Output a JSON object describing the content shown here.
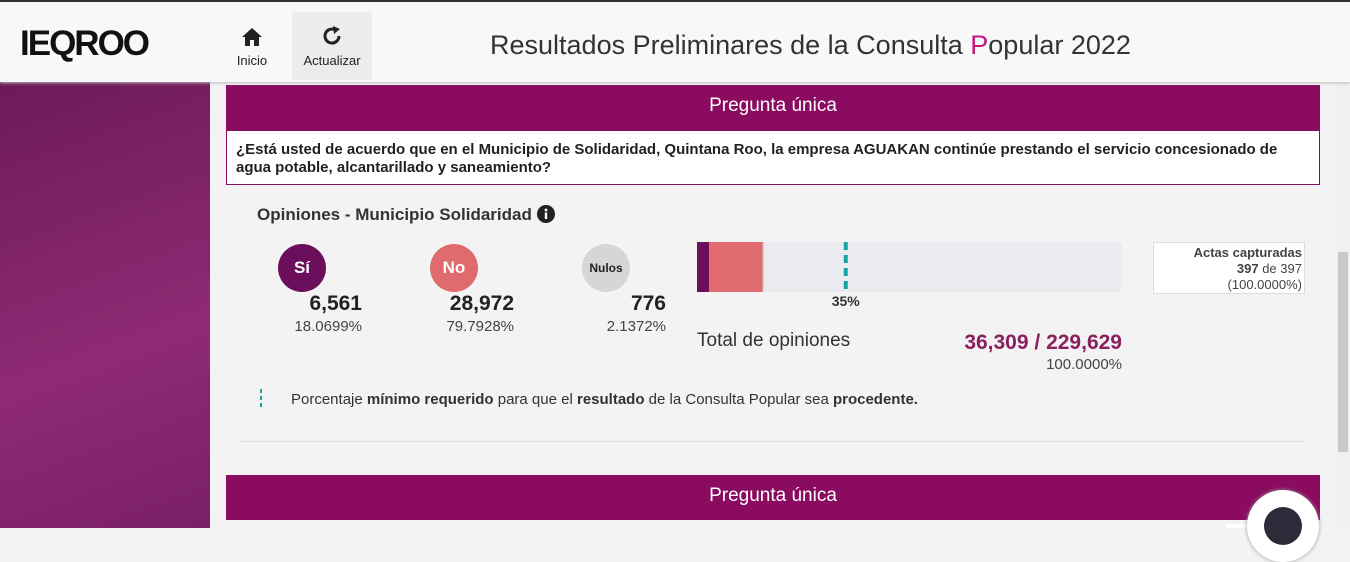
{
  "header": {
    "logo": "IEQROO",
    "nav": [
      "Inicio",
      "Actualizar"
    ],
    "title_parts": [
      "Resultados Preliminares de la Consulta",
      "P",
      "opular 2022"
    ]
  },
  "sections": [
    {
      "heading": "Pregunta única",
      "question": "¿Está usted de acuerdo que en el Municipio de Solidaridad, Quintana Roo, la empresa AGUAKAN continúe prestando el servicio concesionado de agua potable, alcantarillado y saneamiento?",
      "subtitle": "Opiniones - Municipio Solidaridad",
      "options": [
        {
          "name": "Sí",
          "color": "#6b0f5c",
          "votes": {
            "value": 6561,
            "label": "6,561"
          },
          "percent": {
            "value": 18.0699,
            "label": "18.0699%"
          }
        },
        {
          "name": "No",
          "color": "#e06b6f",
          "votes": {
            "value": 28972,
            "label": "28,972"
          },
          "percent": {
            "value": 79.7928,
            "label": "79.7928%"
          }
        },
        {
          "name": "Nulos",
          "color": "#d6d6d6",
          "votes": {
            "value": 776,
            "label": "776"
          },
          "percent": {
            "value": 2.1372,
            "label": "2.1372%"
          }
        }
      ],
      "threshold": {
        "value": 35,
        "label": "35%"
      },
      "total_label": "Total de opiniones",
      "total": {
        "value": 36309,
        "label": "36,309"
      },
      "total_separator": "/",
      "nominal": {
        "value": 229629,
        "label": "229,629"
      },
      "total_percent": {
        "value": 100,
        "label": "100.0000%"
      },
      "actas": {
        "title": "Actas capturadas",
        "captured": 397,
        "of": "de",
        "total": 397,
        "percent": {
          "value": 100,
          "label": "(100.0000%)"
        }
      },
      "note_parts": [
        "Porcentaje ",
        "mínimo requerido",
        " para que el ",
        "resultado",
        " de la Consulta Popular sea ",
        "procedente."
      ]
    },
    {
      "heading": "Pregunta única"
    }
  ]
}
